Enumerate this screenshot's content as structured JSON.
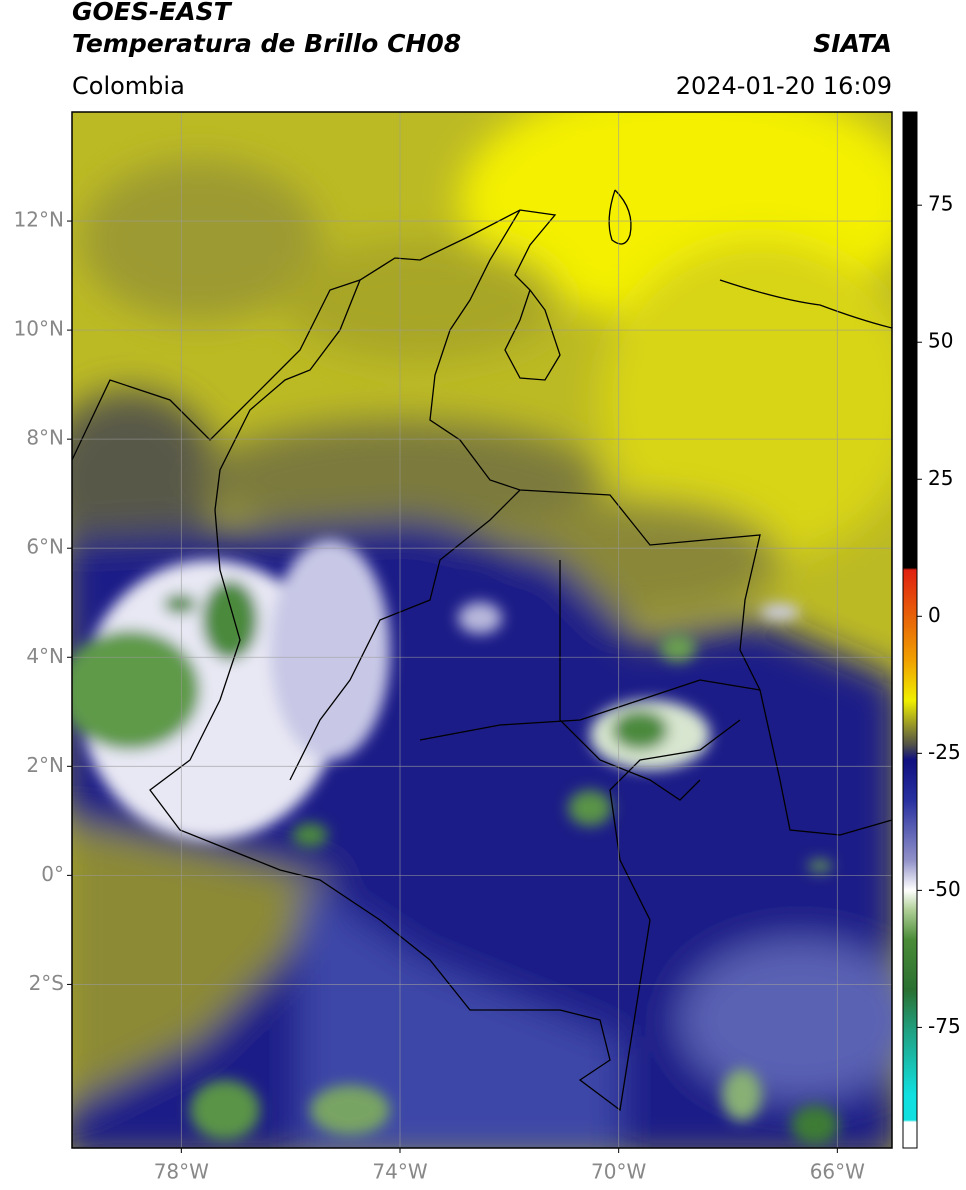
{
  "header": {
    "satellite": "GOES-EAST",
    "product": "Temperatura de Brillo CH08",
    "agency": "SIATA",
    "region": "Colombia",
    "datetime": "2024-01-20 16:09"
  },
  "map": {
    "xlim": [
      -80,
      -65
    ],
    "ylim": [
      -5,
      14
    ],
    "xticks": [
      {
        "value": -78,
        "label": "78°W"
      },
      {
        "value": -74,
        "label": "74°W"
      },
      {
        "value": -70,
        "label": "70°W"
      },
      {
        "value": -66,
        "label": "66°W"
      }
    ],
    "yticks": [
      {
        "value": 12,
        "label": "12°N"
      },
      {
        "value": 10,
        "label": "10°N"
      },
      {
        "value": 8,
        "label": "8°N"
      },
      {
        "value": 6,
        "label": "6°N"
      },
      {
        "value": 4,
        "label": "4°N"
      },
      {
        "value": 2,
        "label": "2°N"
      },
      {
        "value": 0,
        "label": "0°"
      },
      {
        "value": -2,
        "label": "2°S"
      }
    ],
    "grid": true
  },
  "colorbar": {
    "lim": [
      -97,
      92
    ],
    "ticks": [
      75,
      50,
      25,
      0,
      -25,
      -50,
      -75
    ]
  }
}
